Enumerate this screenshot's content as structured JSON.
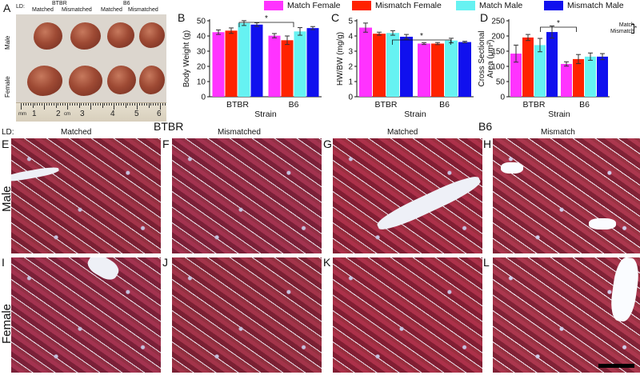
{
  "legend": [
    {
      "label": "Match Female",
      "color": "#ff33ff"
    },
    {
      "label": "Mismatch Female",
      "color": "#ff2200"
    },
    {
      "label": "Match Male",
      "color": "#66f2f2"
    },
    {
      "label": "Mismatch Male",
      "color": "#1010ee"
    }
  ],
  "panel_letters": {
    "A": "A",
    "B": "B",
    "C": "C",
    "D": "D",
    "E": "E",
    "F": "F",
    "G": "G",
    "H": "H",
    "I": "I",
    "J": "J",
    "K": "K",
    "L": "L"
  },
  "photo": {
    "ld_label": "LD:",
    "btbr": "BTBR",
    "b6": "B6",
    "col_matched_1": "Matched",
    "col_mismatched_1": "Mismatched",
    "col_matched_2": "Matched",
    "col_mismatched_2": "Mismatched",
    "row_male": "Male",
    "row_female": "Female",
    "ruler_mm": "mm",
    "ruler_cm": "cm",
    "ruler_numbers": [
      "1",
      "2",
      "3",
      "4",
      "5",
      "6"
    ]
  },
  "chart_data": [
    {
      "type": "bar",
      "panel": "B",
      "categories": [
        "BTBR",
        "B6"
      ],
      "xlabel": "Strain",
      "ylabel": "Body Weight (g)",
      "ylim": [
        0,
        50
      ],
      "yticks": [
        0,
        10,
        20,
        30,
        40,
        50
      ],
      "series": [
        {
          "name": "Match Female",
          "values": [
            42.5,
            40.2
          ],
          "errors": [
            1.5,
            1.4
          ]
        },
        {
          "name": "Mismatch Female",
          "values": [
            43.5,
            37.2
          ],
          "errors": [
            1.8,
            2.8
          ]
        },
        {
          "name": "Match Male",
          "values": [
            48.5,
            43.0
          ],
          "errors": [
            1.6,
            2.5
          ]
        },
        {
          "name": "Mismatch Male",
          "values": [
            47.5,
            45.2
          ],
          "errors": [
            1.2,
            1.0
          ]
        }
      ],
      "annotation": "*"
    },
    {
      "type": "bar",
      "panel": "C",
      "categories": [
        "BTBR",
        "B6"
      ],
      "xlabel": "Strain",
      "ylabel": "HW/BW (mg/g)",
      "ylim": [
        0,
        5
      ],
      "yticks": [
        0,
        1,
        2,
        3,
        4,
        5
      ],
      "series": [
        {
          "name": "Match Female",
          "values": [
            4.55,
            3.5
          ],
          "errors": [
            0.3,
            0.06
          ]
        },
        {
          "name": "Mismatch Female",
          "values": [
            4.15,
            3.5
          ],
          "errors": [
            0.1,
            0.07
          ]
        },
        {
          "name": "Match Male",
          "values": [
            4.2,
            3.7
          ],
          "errors": [
            0.15,
            0.15
          ]
        },
        {
          "name": "Mismatch Male",
          "values": [
            3.95,
            3.6
          ],
          "errors": [
            0.15,
            0.05
          ]
        }
      ],
      "annotation": "*"
    },
    {
      "type": "bar",
      "panel": "D",
      "categories": [
        "BTBR",
        "B6"
      ],
      "xlabel": "Strain",
      "ylabel_line1": "Cross Sectional",
      "ylabel_line2": "Area (μm²)",
      "ylim": [
        0,
        250
      ],
      "yticks": [
        0,
        50,
        100,
        150,
        200,
        250
      ],
      "series": [
        {
          "name": "Match Female",
          "values": [
            142,
            108
          ],
          "errors": [
            28,
            7
          ]
        },
        {
          "name": "Mismatch Female",
          "values": [
            195,
            124
          ],
          "errors": [
            10,
            15
          ]
        },
        {
          "name": "Match Male",
          "values": [
            170,
            132
          ],
          "errors": [
            22,
            12
          ]
        },
        {
          "name": "Mismatch Male",
          "values": [
            213,
            132
          ],
          "errors": [
            20,
            10
          ]
        }
      ],
      "annotation": "*",
      "side_note_line1": "Match",
      "side_note_line2": "Mismatch",
      "side_note_star": "*"
    }
  ],
  "histology": {
    "ld_label": "LD:",
    "btbr": "BTBR",
    "b6": "B6",
    "col_headers": [
      "Matched",
      "Mismatched",
      "Matched",
      "Mismatch"
    ],
    "row_male": "Male",
    "row_female": "Female"
  }
}
